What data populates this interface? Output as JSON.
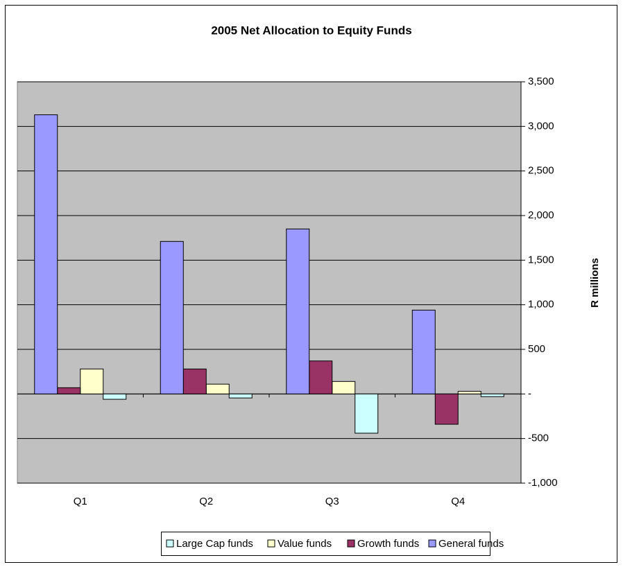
{
  "chart_data": {
    "type": "bar",
    "title": "2005 Net Allocation to Equity Funds",
    "y_axis_label": "R millions",
    "categories": [
      "Q1",
      "Q2",
      "Q3",
      "Q4"
    ],
    "series": [
      {
        "name": "Large Cap funds",
        "color": "#ccffff",
        "values": [
          -60,
          -45,
          -440,
          -30
        ]
      },
      {
        "name": "Value funds",
        "color": "#ffffcc",
        "values": [
          280,
          110,
          140,
          30
        ]
      },
      {
        "name": "Growth funds",
        "color": "#993366",
        "values": [
          70,
          280,
          370,
          -340
        ]
      },
      {
        "name": "General funds",
        "color": "#9999ff",
        "values": [
          3130,
          1710,
          1850,
          940
        ]
      }
    ],
    "ylim": [
      -1000,
      3500
    ],
    "yticks": [
      {
        "value": -1000,
        "label": "-1,000"
      },
      -500,
      {
        "value": 0,
        "label": "-"
      },
      500,
      {
        "value": 1000,
        "label": "1,000"
      },
      {
        "value": 1500,
        "label": "1,500"
      },
      {
        "value": 2000,
        "label": "2,000"
      },
      {
        "value": 2500,
        "label": "2,500"
      },
      {
        "value": 3000,
        "label": "3,000"
      },
      {
        "value": 3500,
        "label": "3,500"
      }
    ],
    "grid": true,
    "legend": "bottom",
    "plot_background": "#c0c0c0"
  }
}
